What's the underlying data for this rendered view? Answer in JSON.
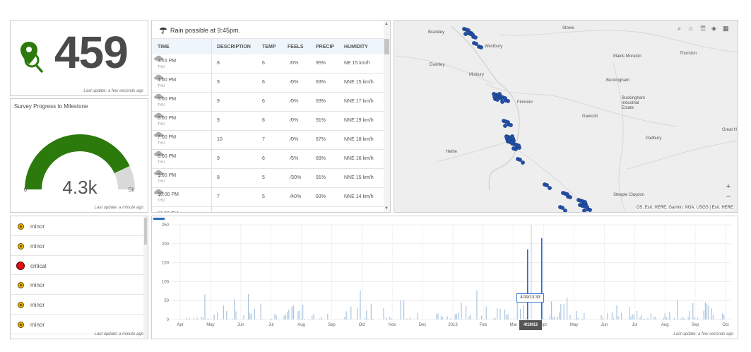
{
  "indicator": {
    "value": "459",
    "last_update": "Last update: a few seconds ago",
    "icon": "search-location-icon",
    "color": "#2b7a0b"
  },
  "gauge": {
    "title": "Survey Progress to Milestone",
    "value_label": "4.3k",
    "min_label": "0",
    "max_label": "5k",
    "fill_fraction": 0.86,
    "fill_color": "#2b7a0b",
    "track_color": "#d9d9d9",
    "last_update": "Last update: a minute ago"
  },
  "weather": {
    "message": "Rain possible at 9:45pm.",
    "columns": [
      "TIME",
      "DESCRIPTION",
      "TEMP",
      "FEELS",
      "PRECIP",
      "HUMIDITY"
    ],
    "rows": [
      {
        "time": "3:15 PM",
        "day": "THU",
        "desc": "8",
        "temp": "6",
        "feels": "0%",
        "precip": "95%",
        "humidity": "NE 15 km/h",
        "rain": false
      },
      {
        "time": "4:00 PM",
        "day": "THU",
        "desc": "9",
        "temp": "6",
        "feels": "0%",
        "precip": "93%",
        "humidity": "NNE 15 km/h",
        "rain": false
      },
      {
        "time": "5:00 PM",
        "day": "THU",
        "desc": "9",
        "temp": "6",
        "feels": "0%",
        "precip": "93%",
        "humidity": "NNE 17 km/h",
        "rain": false
      },
      {
        "time": "6:00 PM",
        "day": "THU",
        "desc": "9",
        "temp": "6",
        "feels": "0%",
        "precip": "91%",
        "humidity": "NNE 19 km/h",
        "rain": false
      },
      {
        "time": "7:00 PM",
        "day": "THU",
        "desc": "10",
        "temp": "7",
        "feels": "0%",
        "precip": "87%",
        "humidity": "NNE 18 km/h",
        "rain": false
      },
      {
        "time": "8:00 PM",
        "day": "THU",
        "desc": "9",
        "temp": "6",
        "feels": "5%",
        "precip": "89%",
        "humidity": "NNE 16 km/h",
        "rain": false
      },
      {
        "time": "9:00 PM",
        "day": "THU",
        "desc": "8",
        "temp": "5",
        "feels": "30%",
        "precip": "91%",
        "humidity": "NNE 15 km/h",
        "rain": true
      },
      {
        "time": "10:00 PM",
        "day": "THU",
        "desc": "7",
        "temp": "5",
        "feels": "40%",
        "precip": "93%",
        "humidity": "NNE 14 km/h",
        "rain": true
      },
      {
        "time": "11:00 PM",
        "day": "",
        "desc": "",
        "temp": "",
        "feels": "",
        "precip": "",
        "humidity": "",
        "rain": false
      }
    ]
  },
  "map": {
    "labels": [
      {
        "text": "Brackley"
      },
      {
        "text": "Westbury"
      },
      {
        "text": "Stowe"
      },
      {
        "text": "Evenley"
      },
      {
        "text": "Mixbury"
      },
      {
        "text": "Maids Moreton"
      },
      {
        "text": "Thornton"
      },
      {
        "text": "Buckingham"
      },
      {
        "text": "Finmere"
      },
      {
        "text": "Buckingham Industrial Estate"
      },
      {
        "text": "Gawcott"
      },
      {
        "text": "Great H"
      },
      {
        "text": "Padbury"
      },
      {
        "text": "Hethe"
      },
      {
        "text": "Steeple Claydon"
      }
    ],
    "tools": [
      "search-icon",
      "home-icon",
      "list-icon",
      "layers-icon",
      "basemap-grid-icon"
    ],
    "zoom_in": "+",
    "zoom_out": "−",
    "attribution": "OS, Esri, HERE, Garmin, NGA, USGS | Esri, HERE",
    "point_color": "#2250a8"
  },
  "list": {
    "items": [
      {
        "label": "minor",
        "severity": "minor"
      },
      {
        "label": "minor",
        "severity": "minor"
      },
      {
        "label": "critical",
        "severity": "critical"
      },
      {
        "label": "minor",
        "severity": "minor"
      },
      {
        "label": "minor",
        "severity": "minor"
      },
      {
        "label": "minor",
        "severity": "minor"
      }
    ],
    "last_update": "Last update: a minute ago"
  },
  "chart_data": {
    "type": "bar",
    "yticks": [
      0,
      50,
      100,
      150,
      200,
      250
    ],
    "ylim": [
      0,
      250
    ],
    "xticks": [
      "Apr",
      "May",
      "Jun",
      "Jul",
      "Aug",
      "Sep",
      "Oct",
      "Nov",
      "Dec",
      "2013",
      "Feb",
      "Mar",
      "Apr",
      "May",
      "Jun",
      "Jul",
      "Aug",
      "Sep",
      "Oct"
    ],
    "tooltip": "4/19/13:33",
    "cursor_label": "4/19/13",
    "bar_color": "#a8c4e0",
    "highlight_color": "#2b6cc4",
    "highlight_values": [
      185,
      215
    ],
    "last_update": "Last update: a few seconds ago"
  }
}
